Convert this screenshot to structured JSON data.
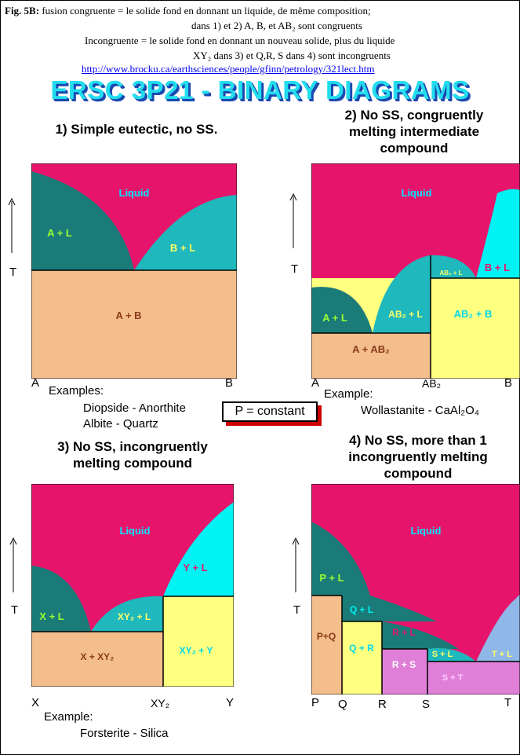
{
  "header": {
    "fig_label": "Fig. 5B:",
    "line1_rest": " fusion congruente = le solide fond en donnant un liquide, de même composition;",
    "line2": "dans 1) et 2) A, B, et AB₂ sont congruents",
    "line3": "Incongruente = le solide fond en donnant un nouveau solide, plus du liquide",
    "line4": "XY₂ dans 3)  et Q,R, S dans 4) sont incongruents",
    "link": "http://www.brocku.ca/earthsciences/people/gfinn/petrology/321lect.htm"
  },
  "title": "ERSC 3P21 - BINARY DIAGRAMS",
  "colors": {
    "liquid": "#e6156b",
    "teal_dark": "#1a7b79",
    "teal_mid": "#1fb8bc",
    "cyan": "#00f2f2",
    "tan": "#f3be8c",
    "yellow": "#ffff80",
    "pink_purple": "#e07fd8",
    "blue_light": "#8fb7e8"
  },
  "panel1": {
    "title_lines": [
      "1) Simple eutectic, no SS."
    ],
    "regions": {
      "liquid": "Liquid",
      "a_l": "A + L",
      "b_l": "B + L",
      "a_b": "A + B"
    },
    "x_left": "A",
    "x_right": "B",
    "t_axis": "T",
    "examples_label": "Examples:",
    "examples": [
      "Diopside - Anorthite",
      "Albite - Quartz"
    ]
  },
  "panel2": {
    "title_lines": [
      "2) No SS, congruently",
      "melting intermediate",
      "compound"
    ],
    "regions": {
      "liquid": "Liquid",
      "a_l": "A + L",
      "ab2_l_left": "AB₂ + L",
      "ab2_l_top": "AB₂ + L",
      "b_l": "B + L",
      "ab2_b": "AB₂ + B",
      "a_ab2": "A + AB₂"
    },
    "x_left": "A",
    "x_mid": "AB₂",
    "x_right": "B",
    "t_axis": "T",
    "examples_label": "Example:",
    "examples": [
      "Wollastanite - CaAl₂O₄"
    ]
  },
  "pbox": "P = constant",
  "panel3": {
    "title_lines": [
      "3) No SS, incongruently",
      "melting compound"
    ],
    "regions": {
      "liquid": "Liquid",
      "y_l": "Y + L",
      "x_l": "X + L",
      "xy2_l": "XY₂ + L",
      "x_xy2": "X + XY₂",
      "xy2_y": "XY₂ + Y"
    },
    "x_left": "X",
    "x_mid": "XY₂",
    "x_right": "Y",
    "t_axis": "T",
    "examples_label": "Example:",
    "examples": [
      "Forsterite - Silica"
    ]
  },
  "panel4": {
    "title_lines": [
      "4) No SS, more than 1",
      "incongruently melting",
      "compound"
    ],
    "regions": {
      "liquid": "Liquid",
      "p_l": "P + L",
      "q_l": "Q + L",
      "r_l": "R + L",
      "s_l": "S + L",
      "t_l": "T + L",
      "p_q": "P+Q",
      "q_r": "Q + R",
      "r_s": "R + S",
      "s_t": "S + T"
    },
    "x_labels": [
      "P",
      "Q",
      "R",
      "S",
      "T"
    ],
    "t_axis": "T"
  }
}
